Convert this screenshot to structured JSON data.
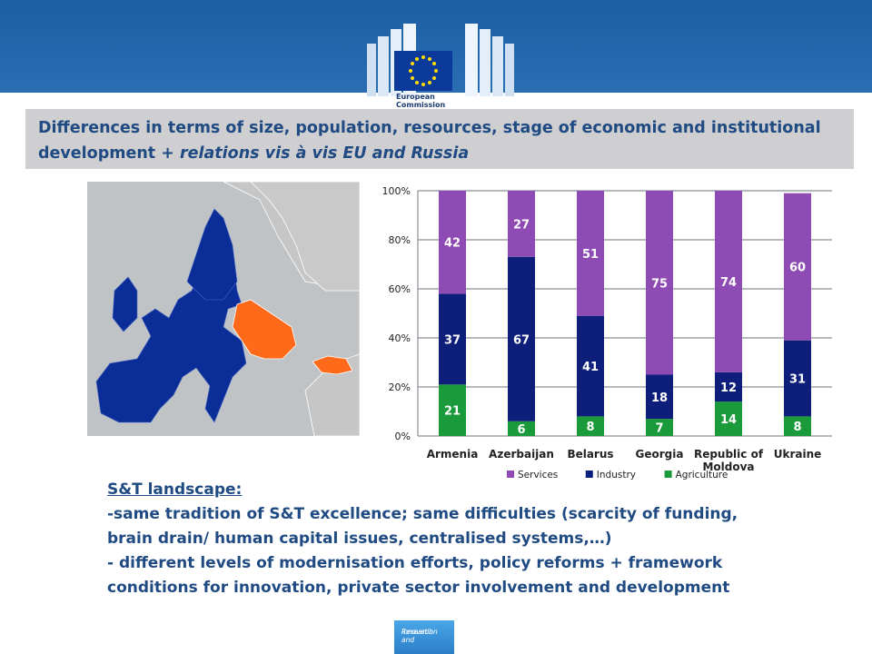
{
  "header": {
    "logo_line1": "European",
    "logo_line2": "Commission"
  },
  "title": {
    "part1": "Differences in terms of size, population, resources, stage of economic and institutional development + ",
    "part2_italic": "relations vis à vis EU and Russia"
  },
  "body": {
    "heading": "S&T landscape:",
    "line1": "-same tradition of S&T excellence; same difficulties (scarcity of funding,",
    "line2": "brain drain/ human capital issues, centralised systems,…)",
    "line3": "- different levels of modernisation efforts, policy reforms + framework",
    "line4": "conditions for innovation, private sector involvement and development"
  },
  "footer": {
    "badge_line1": "Research and",
    "badge_line2": "Innovation"
  },
  "colors": {
    "services": "#8e4bb3",
    "industry": "#0d1f7a",
    "agriculture": "#1a9a3a",
    "map_eu": "#0b2d97",
    "map_partner": "#ff6a1a",
    "map_other": "#c6c6c6"
  },
  "chart_data": {
    "type": "bar",
    "stacked": true,
    "categories": [
      "Armenia",
      "Azerbaijan",
      "Belarus",
      "Georgia",
      "Republic of Moldova",
      "Ukraine"
    ],
    "category_lines": [
      [
        "Armenia"
      ],
      [
        "Azerbaijan"
      ],
      [
        "Belarus"
      ],
      [
        "Georgia"
      ],
      [
        "Republic of",
        "Moldova"
      ],
      [
        "Ukraine"
      ]
    ],
    "series": [
      {
        "name": "Agriculture",
        "values": [
          21,
          6,
          8,
          7,
          14,
          8
        ]
      },
      {
        "name": "Industry",
        "values": [
          37,
          67,
          41,
          18,
          12,
          31
        ]
      },
      {
        "name": "Services",
        "values": [
          42,
          27,
          51,
          75,
          74,
          60
        ]
      }
    ],
    "legend_order": [
      "Services",
      "Industry",
      "Agriculture"
    ],
    "yticks": [
      "0%",
      "20%",
      "40%",
      "60%",
      "80%",
      "100%"
    ],
    "ylim": [
      0,
      100
    ],
    "grid": true,
    "legend_position": "bottom"
  }
}
